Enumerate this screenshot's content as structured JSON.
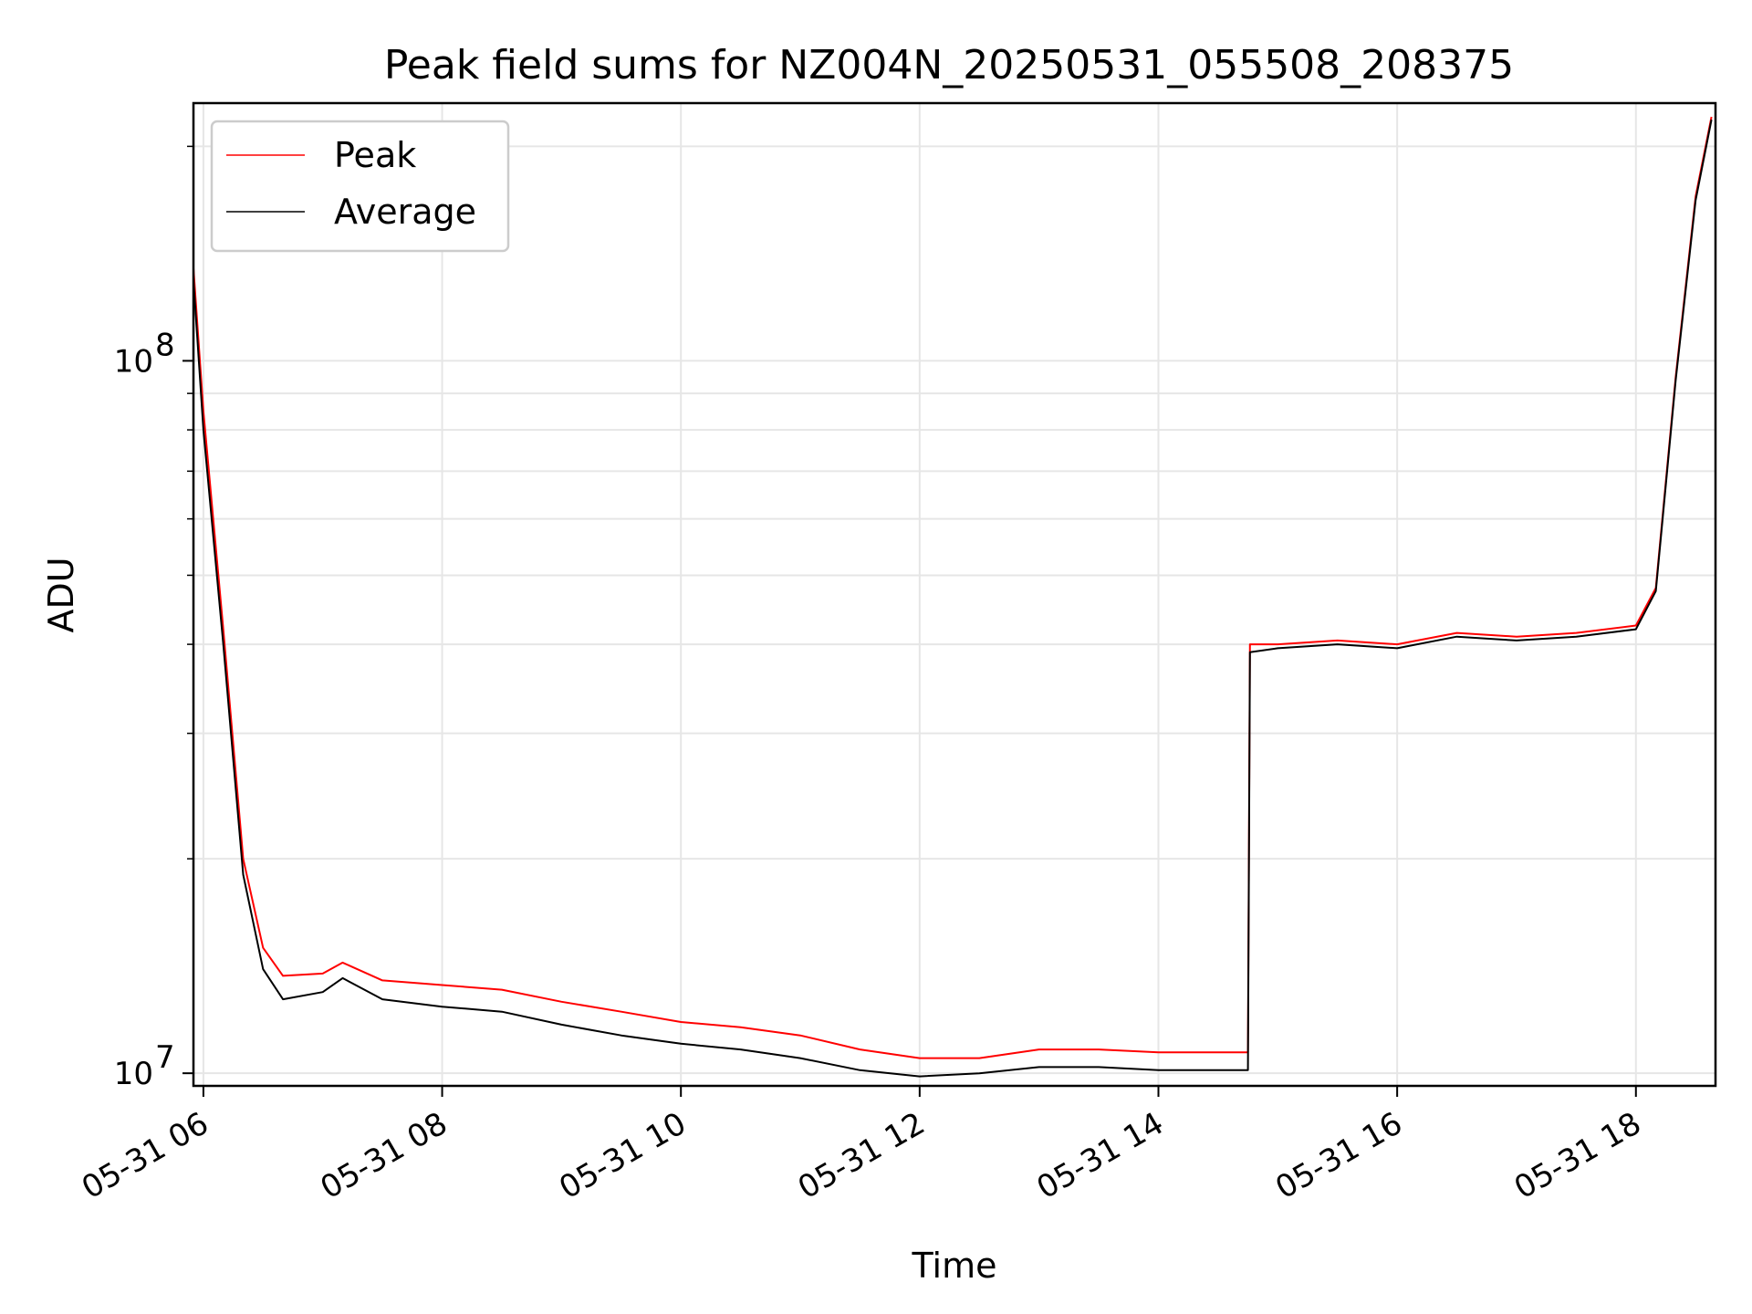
{
  "chart_data": {
    "type": "line",
    "title": "Peak field sums for NZ004N_20250531_055508_208375",
    "xlabel": "Time",
    "ylabel": "ADU",
    "y_scale": "log",
    "xlim": [
      "2025-05-31 05:55",
      "2025-05-31 18:40"
    ],
    "ylim": [
      9600000,
      230000000
    ],
    "grid": true,
    "legend": {
      "placement": "top-left"
    },
    "x_ticks": [
      "05-31 06",
      "05-31 08",
      "05-31 10",
      "05-31 12",
      "05-31 14",
      "05-31 16",
      "05-31 18"
    ],
    "y_ticks": [
      {
        "value": 10000000,
        "label": "10",
        "exp": "7"
      },
      {
        "value": 100000000,
        "label": "10",
        "exp": "8"
      }
    ],
    "series": [
      {
        "name": "Peak",
        "color": "#ff0000",
        "x": [
          "2025-05-31 05:55",
          "2025-05-31 06:00",
          "2025-05-31 06:10",
          "2025-05-31 06:20",
          "2025-05-31 06:30",
          "2025-05-31 06:40",
          "2025-05-31 07:00",
          "2025-05-31 07:10",
          "2025-05-31 07:30",
          "2025-05-31 08:00",
          "2025-05-31 08:30",
          "2025-05-31 09:00",
          "2025-05-31 09:30",
          "2025-05-31 10:00",
          "2025-05-31 10:30",
          "2025-05-31 11:00",
          "2025-05-31 11:30",
          "2025-05-31 12:00",
          "2025-05-31 12:30",
          "2025-05-31 13:00",
          "2025-05-31 13:30",
          "2025-05-31 14:00",
          "2025-05-31 14:45",
          "2025-05-31 14:46",
          "2025-05-31 15:00",
          "2025-05-31 15:30",
          "2025-05-31 16:00",
          "2025-05-31 16:30",
          "2025-05-31 17:00",
          "2025-05-31 17:30",
          "2025-05-31 18:00",
          "2025-05-31 18:10",
          "2025-05-31 18:20",
          "2025-05-31 18:30",
          "2025-05-31 18:38"
        ],
        "y": [
          135000000,
          85000000,
          42000000,
          20000000,
          15000000,
          13700000,
          13800000,
          14300000,
          13500000,
          13300000,
          13100000,
          12600000,
          12200000,
          11800000,
          11600000,
          11300000,
          10800000,
          10500000,
          10500000,
          10800000,
          10800000,
          10700000,
          10700000,
          40000000,
          40000000,
          40500000,
          40000000,
          41500000,
          41000000,
          41500000,
          42500000,
          48000000,
          95000000,
          170000000,
          220000000
        ]
      },
      {
        "name": "Average",
        "color": "#000000",
        "x": [
          "2025-05-31 05:55",
          "2025-05-31 06:00",
          "2025-05-31 06:10",
          "2025-05-31 06:20",
          "2025-05-31 06:30",
          "2025-05-31 06:40",
          "2025-05-31 07:00",
          "2025-05-31 07:10",
          "2025-05-31 07:30",
          "2025-05-31 08:00",
          "2025-05-31 08:30",
          "2025-05-31 09:00",
          "2025-05-31 09:30",
          "2025-05-31 10:00",
          "2025-05-31 10:30",
          "2025-05-31 11:00",
          "2025-05-31 11:30",
          "2025-05-31 12:00",
          "2025-05-31 12:30",
          "2025-05-31 13:00",
          "2025-05-31 13:30",
          "2025-05-31 14:00",
          "2025-05-31 14:45",
          "2025-05-31 14:46",
          "2025-05-31 15:00",
          "2025-05-31 15:30",
          "2025-05-31 16:00",
          "2025-05-31 16:30",
          "2025-05-31 17:00",
          "2025-05-31 17:30",
          "2025-05-31 18:00",
          "2025-05-31 18:10",
          "2025-05-31 18:20",
          "2025-05-31 18:30",
          "2025-05-31 18:38"
        ],
        "y": [
          130000000,
          80000000,
          40000000,
          19000000,
          14000000,
          12700000,
          13000000,
          13600000,
          12700000,
          12400000,
          12200000,
          11700000,
          11300000,
          11000000,
          10800000,
          10500000,
          10100000,
          9900000,
          10000000,
          10200000,
          10200000,
          10100000,
          10100000,
          39000000,
          39500000,
          40000000,
          39500000,
          41000000,
          40500000,
          41000000,
          42000000,
          47500000,
          94000000,
          168000000,
          218000000
        ]
      }
    ]
  }
}
